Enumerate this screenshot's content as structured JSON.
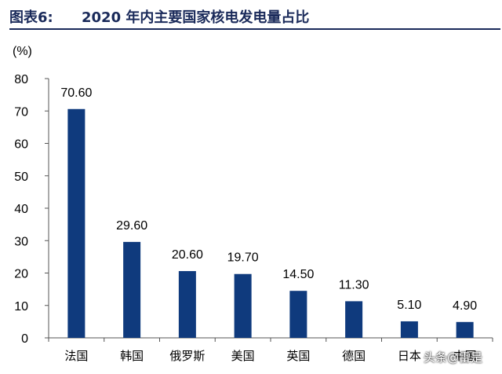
{
  "figure": {
    "label": "图表6:",
    "title": "2020 年内主要国家核电发电量占比"
  },
  "watermark": "头条@雷是",
  "chart_data": {
    "type": "bar",
    "title": "2020 年内主要国家核电发电量占比",
    "ylabel": "(%)",
    "xlabel": "",
    "ylim": [
      0,
      80
    ],
    "yticks": [
      0,
      10,
      20,
      30,
      40,
      50,
      60,
      70,
      80
    ],
    "categories": [
      "法国",
      "韩国",
      "俄罗斯",
      "美国",
      "英国",
      "德国",
      "日本",
      "中国"
    ],
    "values": [
      70.6,
      29.6,
      20.6,
      19.7,
      14.5,
      11.3,
      5.1,
      4.9
    ],
    "value_labels": [
      "70.60",
      "29.60",
      "20.60",
      "19.70",
      "14.50",
      "11.30",
      "5.10",
      "4.90"
    ],
    "bar_color": "#0f3a7d",
    "grid": false,
    "legend": "none"
  }
}
